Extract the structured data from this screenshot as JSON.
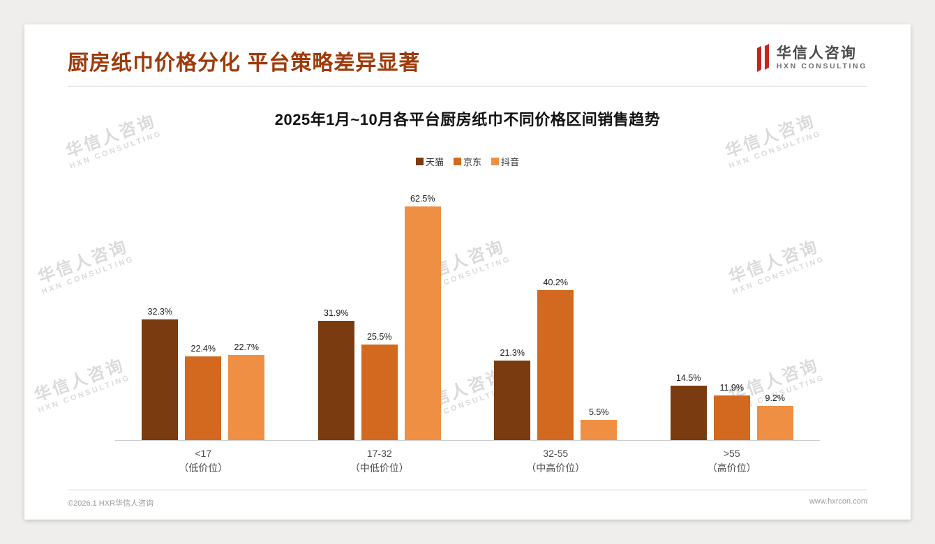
{
  "page": {
    "title": "厨房纸巾价格分化 平台策略差异显著",
    "footer_left": "©2026.1 HXR华信人咨询",
    "footer_right": "www.hxrcon.com"
  },
  "logo": {
    "name": "华信人咨询",
    "subtitle": "HXN CONSULTING",
    "accent_color": "#c8241c"
  },
  "watermark": {
    "line1": "华信人咨询",
    "line2": "HXN CONSULTING"
  },
  "chart_data": {
    "type": "bar",
    "title": "2025年1月~10月各平台厨房纸巾不同价格区间销售趋势",
    "categories": [
      "<17",
      "17-32",
      "32-55",
      ">55"
    ],
    "category_sublabels": [
      "（低价位）",
      "（中低价位）",
      "（中高价位）",
      "（高价位）"
    ],
    "series": [
      {
        "name": "天猫",
        "color": "#7b3b10",
        "values": [
          32.3,
          31.9,
          21.3,
          14.5
        ]
      },
      {
        "name": "京东",
        "color": "#d2691e",
        "values": [
          22.4,
          25.5,
          40.2,
          11.9
        ]
      },
      {
        "name": "抖音",
        "color": "#ef8f43",
        "values": [
          22.7,
          62.5,
          5.5,
          9.2
        ]
      }
    ],
    "ylim": [
      0,
      70
    ],
    "value_suffix": "%",
    "legend_position": "top",
    "grid": false
  }
}
